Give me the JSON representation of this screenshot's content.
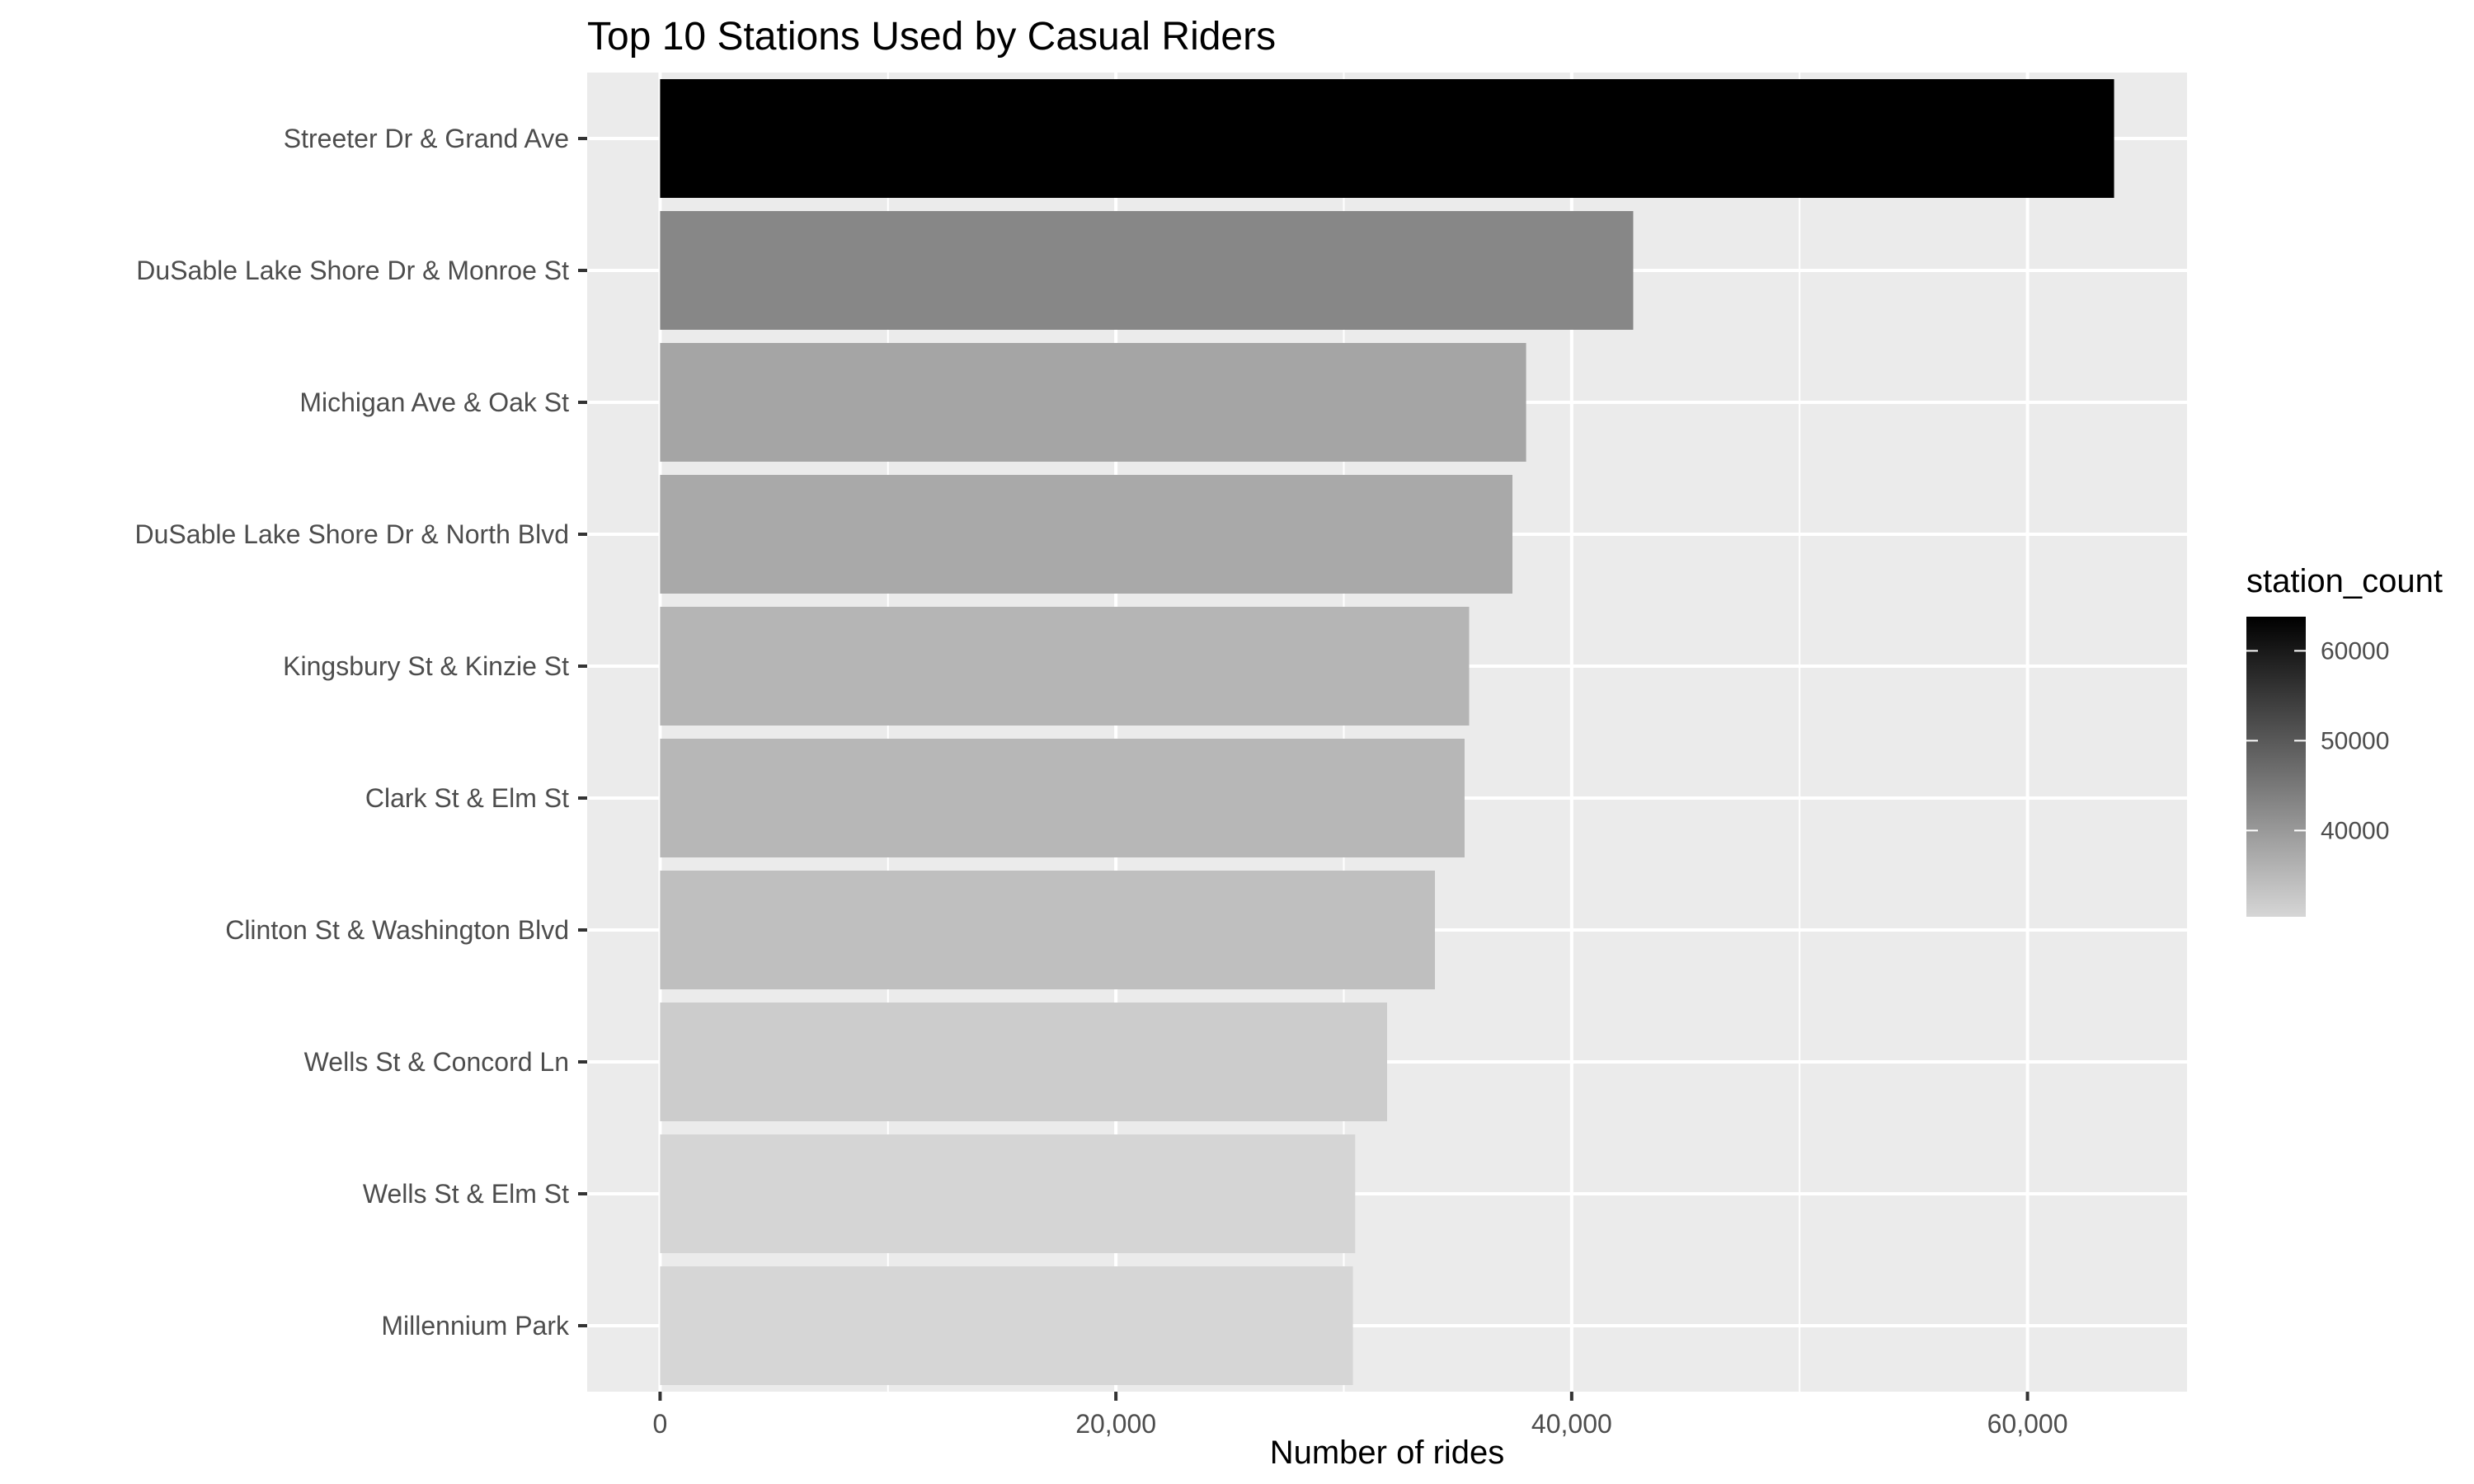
{
  "chart_data": {
    "type": "bar",
    "orientation": "horizontal",
    "title": "Top 10 Stations Used by Casual Riders",
    "xlabel": "Number of rides",
    "ylabel": "",
    "categories": [
      "Streeter Dr & Grand Ave",
      "DuSable Lake Shore Dr & Monroe St",
      "Michigan Ave & Oak St",
      "DuSable Lake Shore Dr & North Blvd",
      "Kingsbury St & Kinzie St",
      "Clark St & Elm St",
      "Clinton St & Washington Blvd",
      "Wells St & Concord Ln",
      "Wells St & Elm St",
      "Millennium Park"
    ],
    "values": [
      63800,
      42700,
      38000,
      37400,
      35500,
      35300,
      34000,
      31900,
      30500,
      30400
    ],
    "xlim": [
      -3200,
      67000
    ],
    "x_ticks": [
      0,
      20000,
      40000,
      60000
    ],
    "x_tick_labels": [
      "0",
      "20,000",
      "40,000",
      "60,000"
    ],
    "grid": true,
    "legend": {
      "title": "station_count",
      "placement": "right",
      "type": "gradient",
      "range": [
        30400,
        63800
      ],
      "low_color": "#d6d6d6",
      "high_color": "#000000",
      "breaks": [
        40000,
        50000,
        60000
      ],
      "break_labels": [
        "40000",
        "50000",
        "60000"
      ]
    },
    "colors": {
      "panel_background": "#ebebeb",
      "grid": "#ffffff"
    }
  }
}
